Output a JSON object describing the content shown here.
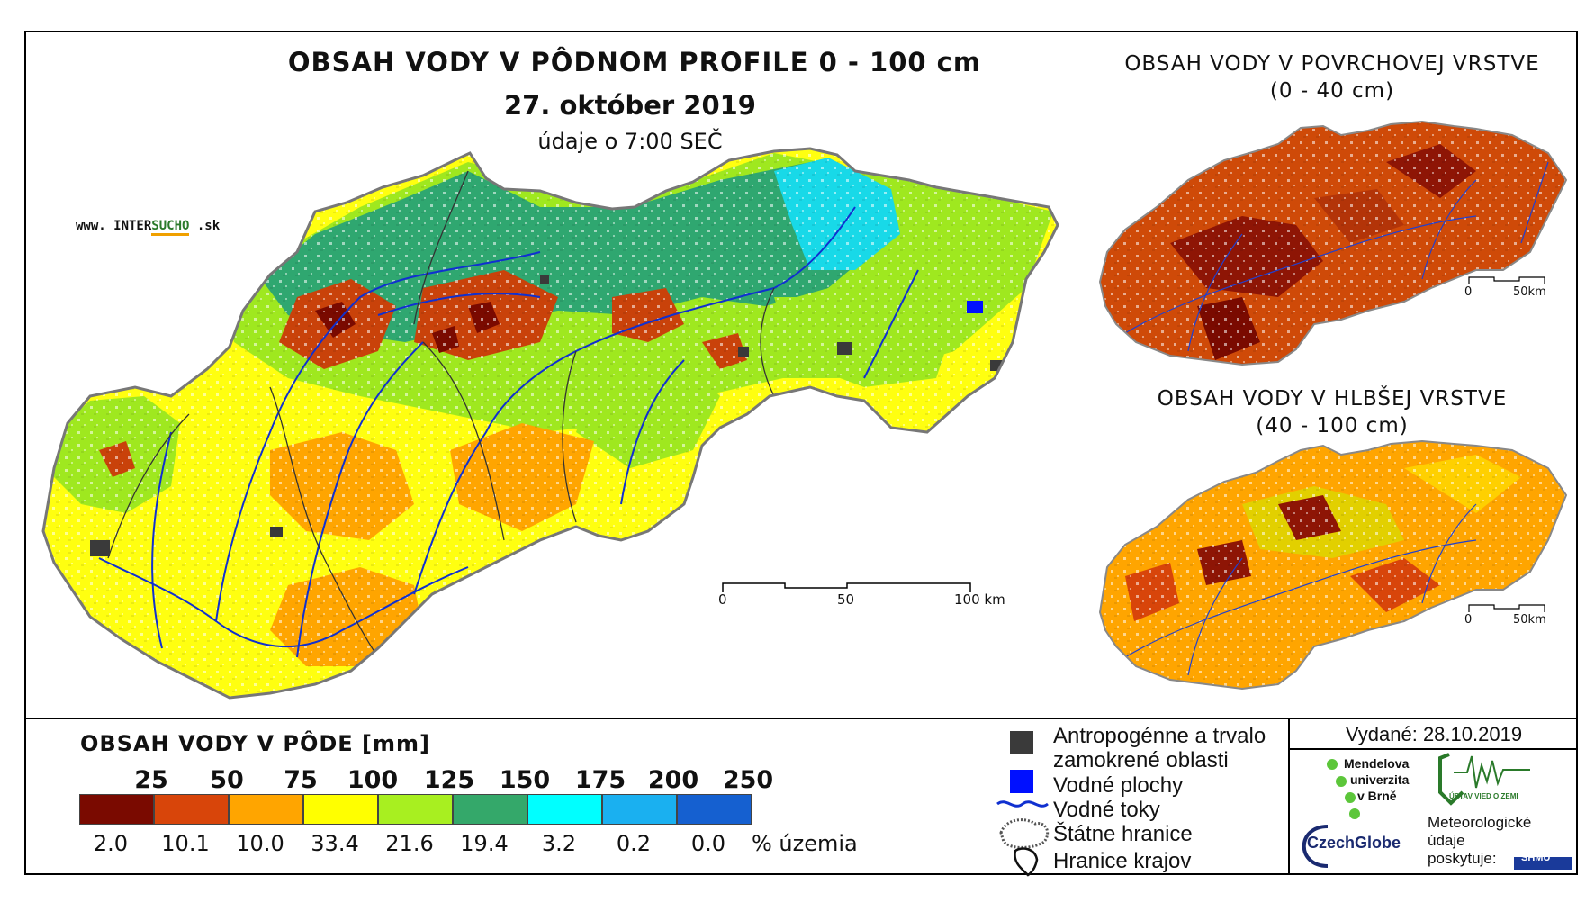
{
  "title": {
    "main": "OBSAH VODY V PÔDNOM PROFILE 0 - 100 cm",
    "date": "27. október 2019",
    "time": "údaje o 7:00 SEČ"
  },
  "logo": {
    "prefix": "www. INTER",
    "highlight": "SUCHO",
    "suffix": " .sk"
  },
  "side_maps": [
    {
      "title": "OBSAH VODY V POVRCHOVEJ VRSTVE",
      "subtitle": "(0 - 40 cm)",
      "scale": [
        "0",
        "50km"
      ]
    },
    {
      "title": "OBSAH VODY V HLBŠEJ VRSTVE",
      "subtitle": "(40 - 100 cm)",
      "scale": [
        "0",
        "50km"
      ]
    }
  ],
  "main_scale": [
    "0",
    "50",
    "100 km"
  ],
  "legend": {
    "title": "OBSAH VODY V PÔDE [mm]",
    "ticks": [
      "25",
      "50",
      "75",
      "100",
      "125",
      "150",
      "175",
      "200",
      "250"
    ],
    "colors": [
      "#7a0a00",
      "#d8450a",
      "#ffa500",
      "#ffff00",
      "#a8ef20",
      "#34a86a",
      "#00ffff",
      "#1ab0f0",
      "#1560d0"
    ],
    "percentages": [
      "2.0",
      "10.1",
      "10.0",
      "33.4",
      "21.6",
      "19.4",
      "3.2",
      "0.2",
      "0.0"
    ],
    "percent_unit": "% územia"
  },
  "symbols": [
    {
      "icon": "dark-square-icon",
      "label": "Antropogénne a trvalo",
      "label2": "zamokrené oblasti"
    },
    {
      "icon": "blue-square-icon",
      "label": "Vodné plochy"
    },
    {
      "icon": "river-line-icon",
      "label": "Vodné toky"
    },
    {
      "icon": "state-border-icon",
      "label": "Štátne hranice"
    },
    {
      "icon": "region-border-icon",
      "label": "Hranice krajov"
    }
  ],
  "issued": "Vydané: 28.10.2019",
  "institutions": {
    "mendel": [
      "Mendelova",
      "univerzita",
      "v Brně"
    ],
    "czechglobe": "CzechGlobe",
    "ustav": "ÚSTAV VIED O ZEMI",
    "meteo": [
      "Meteorologické",
      "údaje",
      "poskytuje:"
    ],
    "shmu": "SHMÚ"
  }
}
